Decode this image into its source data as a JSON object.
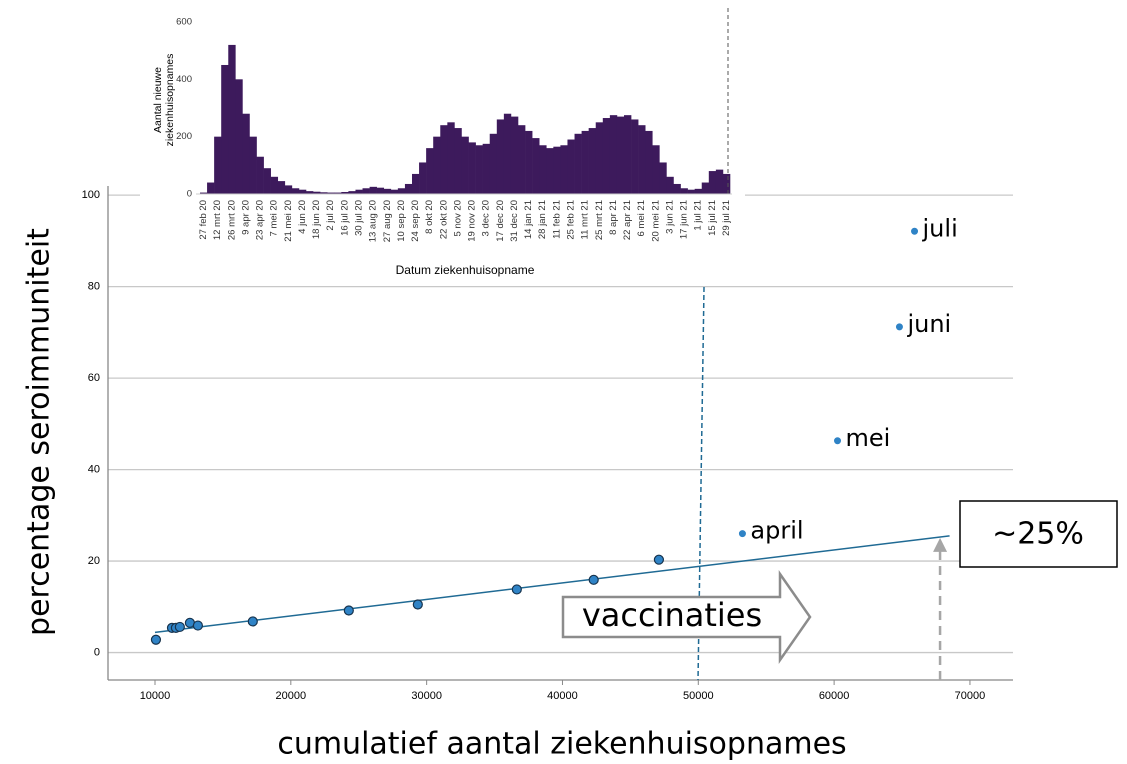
{
  "chart_data": [
    {
      "type": "scatter",
      "y_label": "percentage seroimmuniteit",
      "x_label": "cumulatief aantal ziekenhuisopnames",
      "xlim": [
        6540,
        73170
      ],
      "ylim": [
        -6,
        102
      ],
      "xticks": [
        10000,
        20000,
        30000,
        40000,
        50000,
        60000,
        70000
      ],
      "yticks": [
        0,
        20,
        40,
        60,
        80,
        100
      ],
      "grid": true,
      "series": [
        {
          "color": "#2f83c6",
          "edgecolor": "#17334d",
          "x": [
            10070,
            11250,
            11540,
            11830,
            12570,
            13160,
            17200,
            24270,
            29350,
            36640,
            42300,
            47100
          ],
          "values": [
            2.8,
            5.4,
            5.4,
            5.6,
            6.5,
            5.9,
            6.8,
            9.2,
            10.5,
            13.8,
            15.9,
            20.3
          ]
        },
        {
          "color": "#2f83c6",
          "x": [
            53250,
            60250,
            64810,
            65920
          ],
          "values": [
            26.0,
            46.3,
            71.2,
            92.1
          ],
          "point_labels": [
            "april",
            "mei",
            "juni",
            "juli"
          ]
        }
      ],
      "trend_line": {
        "x": [
          10000,
          68500
        ],
        "values": [
          4.4,
          25.5
        ],
        "color": "#1f6a94"
      },
      "reference_line_x": 50200,
      "annotations": [
        {
          "text": "vaccinaties"
        },
        {
          "text": "~25%",
          "x": 67800,
          "y": 25.5
        }
      ]
    },
    {
      "type": "bar",
      "y_label": [
        "Aantal nieuwe",
        "ziekenhuisopnames"
      ],
      "x_label": "Datum ziekenhuisopname",
      "color": "#3d1a5c",
      "ylim": [
        0,
        640
      ],
      "yticks": [
        0,
        200,
        400,
        600
      ],
      "categories": [
        "27 feb 20",
        null,
        "12 mrt 20",
        null,
        "26 mrt 20",
        null,
        "9 apr 20",
        null,
        "23 apr 20",
        null,
        "7 mei 20",
        null,
        "21 mei 20",
        null,
        "4 jun 20",
        null,
        "18 jun 20",
        null,
        "2 jul 20",
        null,
        "16 jul 20",
        null,
        "30 jul 20",
        null,
        "13 aug 20",
        null,
        "27 aug 20",
        null,
        "10 sep 20",
        null,
        "24 sep 20",
        null,
        "8 okt 20",
        null,
        "22 okt 20",
        null,
        "5 nov 20",
        null,
        "19 nov 20",
        null,
        "3 dec 20",
        null,
        "17 dec 20",
        null,
        "31 dec 20",
        null,
        "14 jan 21",
        null,
        "28 jan 21",
        null,
        "11 feb 21",
        null,
        "25 feb 21",
        null,
        "11 mrt 21",
        null,
        "25 mrt 21",
        null,
        "8 apr 21",
        null,
        "22 apr 21",
        null,
        "6 mei 21",
        null,
        "20 mei 21",
        null,
        "3 jun 21",
        null,
        "17 jun 21",
        null,
        "1 jul 21",
        null,
        "15 jul 21",
        null,
        "29 jul 21"
      ],
      "values": [
        5,
        40,
        200,
        450,
        520,
        400,
        280,
        200,
        130,
        90,
        60,
        45,
        30,
        20,
        15,
        10,
        8,
        6,
        5,
        5,
        7,
        10,
        15,
        20,
        25,
        22,
        18,
        15,
        20,
        35,
        70,
        110,
        160,
        200,
        240,
        250,
        230,
        200,
        180,
        170,
        175,
        210,
        260,
        280,
        270,
        240,
        220,
        195,
        170,
        160,
        165,
        170,
        190,
        210,
        220,
        230,
        250,
        265,
        275,
        270,
        275,
        260,
        240,
        220,
        170,
        110,
        60,
        35,
        20,
        15,
        18,
        40,
        80,
        85,
        70
      ]
    }
  ]
}
